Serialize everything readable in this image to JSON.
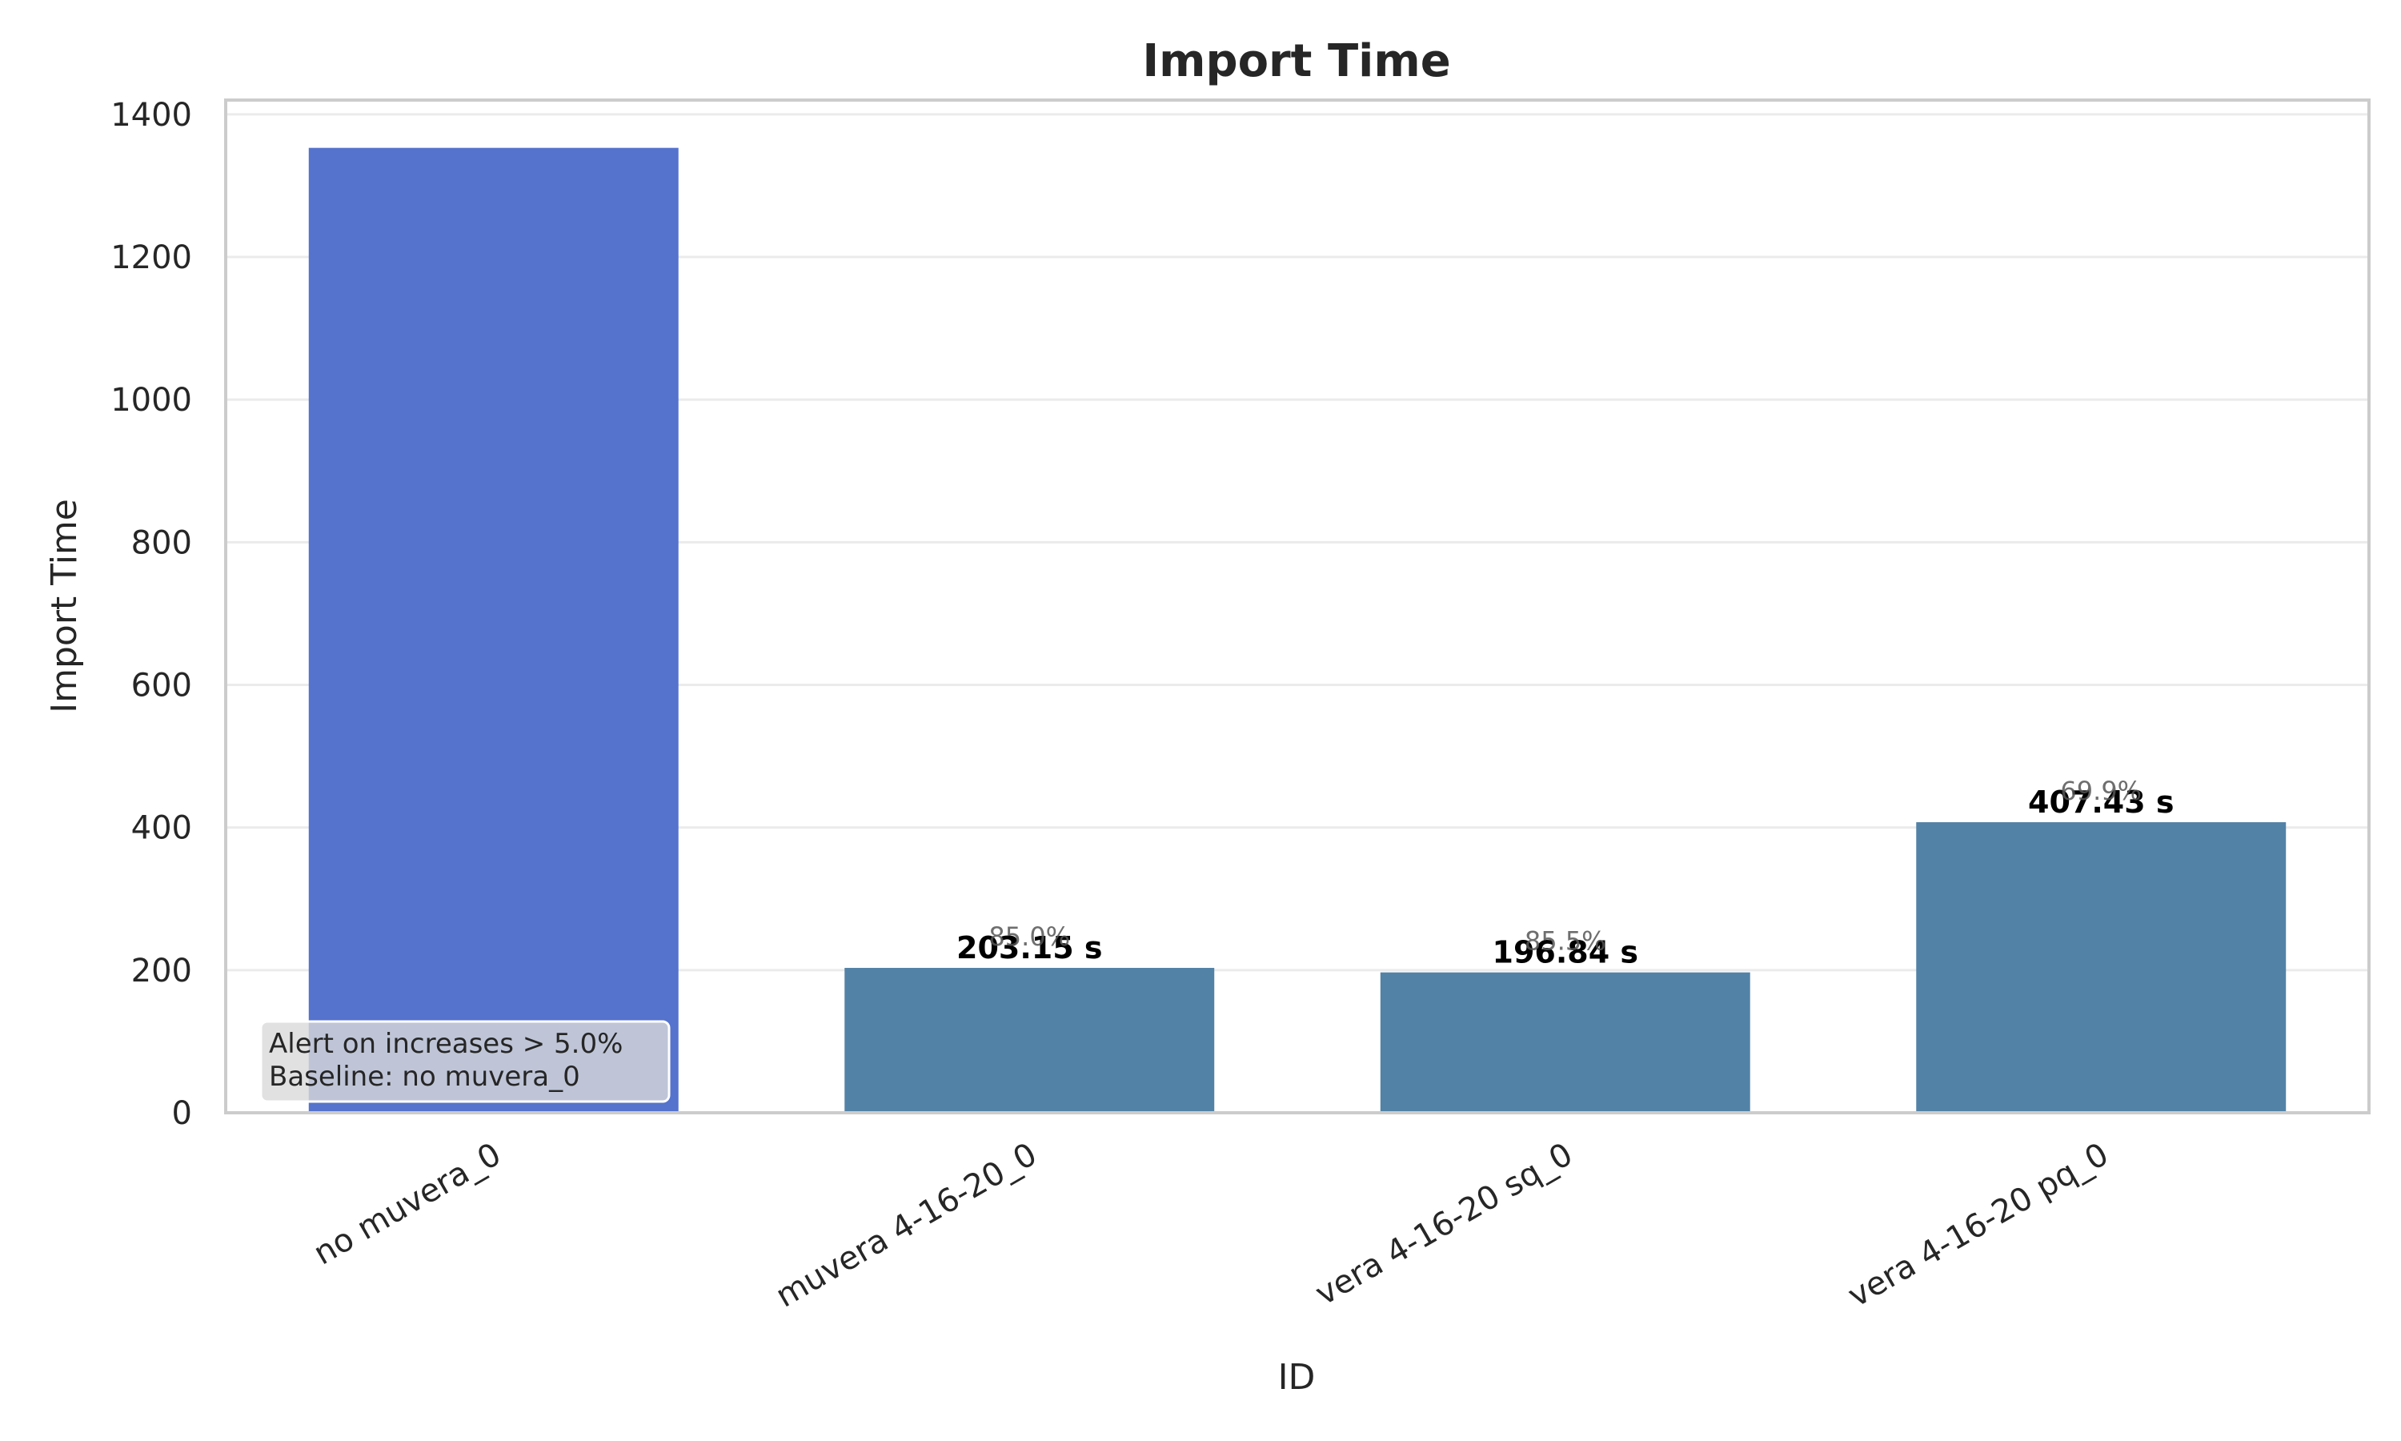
{
  "chart_data": {
    "type": "bar",
    "title": "Import Time",
    "xlabel": "ID",
    "ylabel": "Import Time",
    "ylim": [
      0,
      1420
    ],
    "yticks": [
      0,
      200,
      400,
      600,
      800,
      1000,
      1200,
      1400
    ],
    "grid": true,
    "categories": [
      "no muvera_0",
      "muvera 4-16-20_0",
      "vera 4-16-20 sq_0",
      "vera 4-16-20 pq_0"
    ],
    "values": [
      1353,
      203.15,
      196.84,
      407.43
    ],
    "value_labels": [
      "",
      "203.15 s",
      "196.84 s",
      "407.43 s"
    ],
    "change_labels": [
      "",
      "85.0%",
      "85.5%",
      "69.9%"
    ],
    "colors": [
      "#5573cd",
      "#5282a6",
      "#5282a6",
      "#5282a6"
    ],
    "annotation": {
      "lines": [
        "Alert on increases > 5.0%",
        "Baseline: no muvera_0"
      ]
    }
  }
}
